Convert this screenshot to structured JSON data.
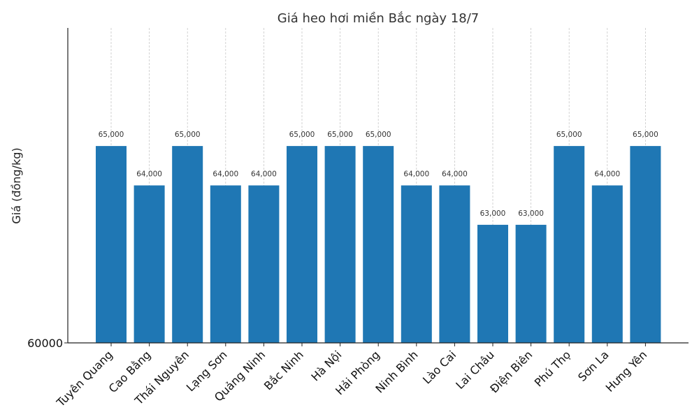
{
  "chart_data": {
    "type": "bar",
    "title": "Giá heo hơi miền Bắc ngày 18/7",
    "xlabel": "",
    "ylabel": "Giá (đồng/kg)",
    "categories": [
      "Tuyên Quang",
      "Cao Bằng",
      "Thái Nguyên",
      "Lạng Sơn",
      "Quảng Ninh",
      "Bắc Ninh",
      "Hà Nội",
      "Hải Phòng",
      "Ninh Bình",
      "Lào Cai",
      "Lai Châu",
      "Điện Biên",
      "Phú Thọ",
      "Sơn La",
      "Hưng Yên"
    ],
    "values": [
      65000,
      64000,
      65000,
      64000,
      64000,
      65000,
      65000,
      65000,
      64000,
      64000,
      63000,
      63000,
      65000,
      64000,
      65000
    ],
    "data_labels": [
      "65,000",
      "64,000",
      "65,000",
      "64,000",
      "64,000",
      "65,000",
      "65,000",
      "65,000",
      "64,000",
      "64,000",
      "63,000",
      "63,000",
      "65,000",
      "64,000",
      "65,000"
    ],
    "ylim": [
      60000,
      68000
    ],
    "yticks": [
      "60000"
    ],
    "grid": "vertical dashed",
    "bar_color": "#1f77b4",
    "grid_color": "#c8c8c8"
  }
}
